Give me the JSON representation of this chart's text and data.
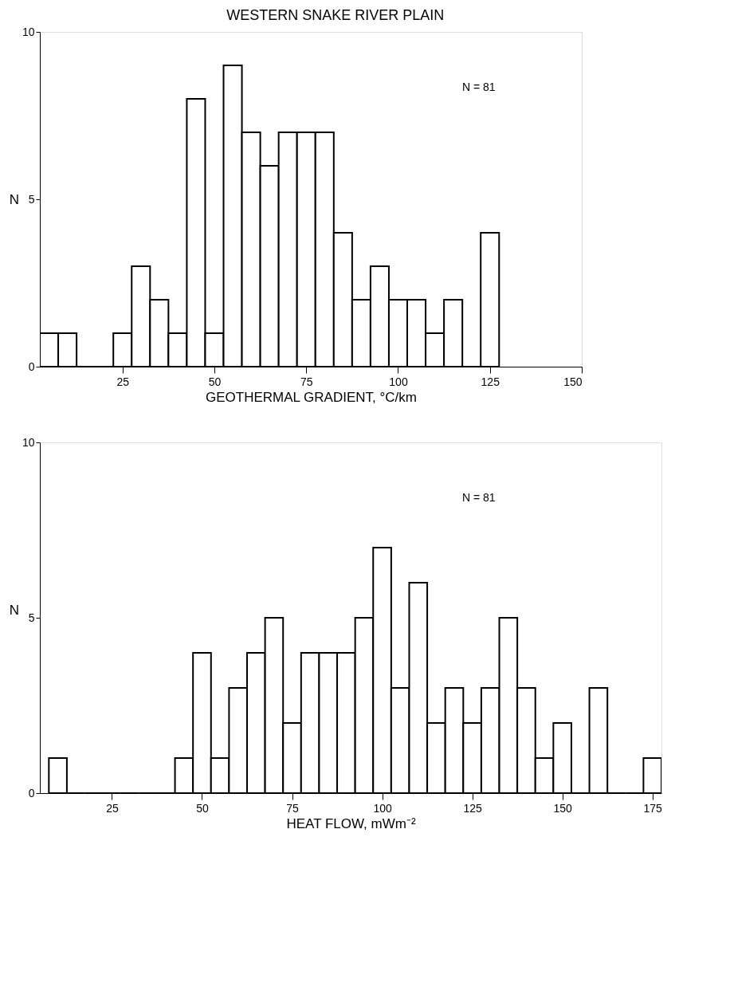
{
  "chart_data": [
    {
      "type": "histogram",
      "title": "WESTERN SNAKE RIVER PLAIN",
      "xlabel": "GEOTHERMAL  GRADIENT, °C/km",
      "ylabel": "N",
      "annotations": [
        "N = 81"
      ],
      "bins": [
        2.5,
        7.5,
        12.5,
        17.5,
        22.5,
        27.5,
        32.5,
        37.5,
        42.5,
        47.5,
        52.5,
        57.5,
        62.5,
        67.5,
        72.5,
        77.5,
        82.5,
        87.5,
        92.5,
        97.5,
        102.5,
        107.5,
        112.5,
        117.5,
        122.5,
        127.5
      ],
      "values": [
        1,
        1,
        0,
        0,
        1,
        3,
        2,
        1,
        8,
        1,
        9,
        7,
        6,
        7,
        7,
        7,
        4,
        2,
        3,
        2,
        2,
        1,
        2,
        0,
        4
      ],
      "color": "#000000",
      "xlim": [
        2.5,
        150
      ],
      "xticks": [
        25,
        50,
        75,
        100,
        125,
        150
      ],
      "ylim": [
        0,
        10
      ],
      "yticks": [
        0,
        5,
        10
      ],
      "grid": false
    },
    {
      "type": "histogram",
      "xlabel": "HEAT  FLOW,  mWm⁻²",
      "ylabel": "N",
      "annotations": [
        "N = 81"
      ],
      "bins": [
        7.5,
        12.5,
        17.5,
        22.5,
        27.5,
        32.5,
        37.5,
        42.5,
        47.5,
        52.5,
        57.5,
        62.5,
        67.5,
        72.5,
        77.5,
        82.5,
        87.5,
        92.5,
        97.5,
        102.5,
        107.5,
        112.5,
        117.5,
        122.5,
        127.5,
        132.5,
        137.5,
        142.5,
        147.5,
        152.5,
        157.5,
        162.5,
        167.5,
        172.5,
        177.5
      ],
      "values": [
        1,
        0,
        0,
        0,
        0,
        0,
        0,
        1,
        4,
        1,
        3,
        4,
        5,
        2,
        4,
        4,
        4,
        5,
        7,
        3,
        6,
        2,
        3,
        2,
        3,
        5,
        3,
        1,
        2,
        0,
        3,
        0,
        0,
        1
      ],
      "color": "#000000",
      "xlim": [
        5,
        177.5
      ],
      "xticks": [
        25,
        50,
        75,
        100,
        125,
        150,
        175
      ],
      "ylim": [
        0,
        10
      ],
      "yticks": [
        0,
        5,
        10
      ],
      "grid": false
    }
  ]
}
